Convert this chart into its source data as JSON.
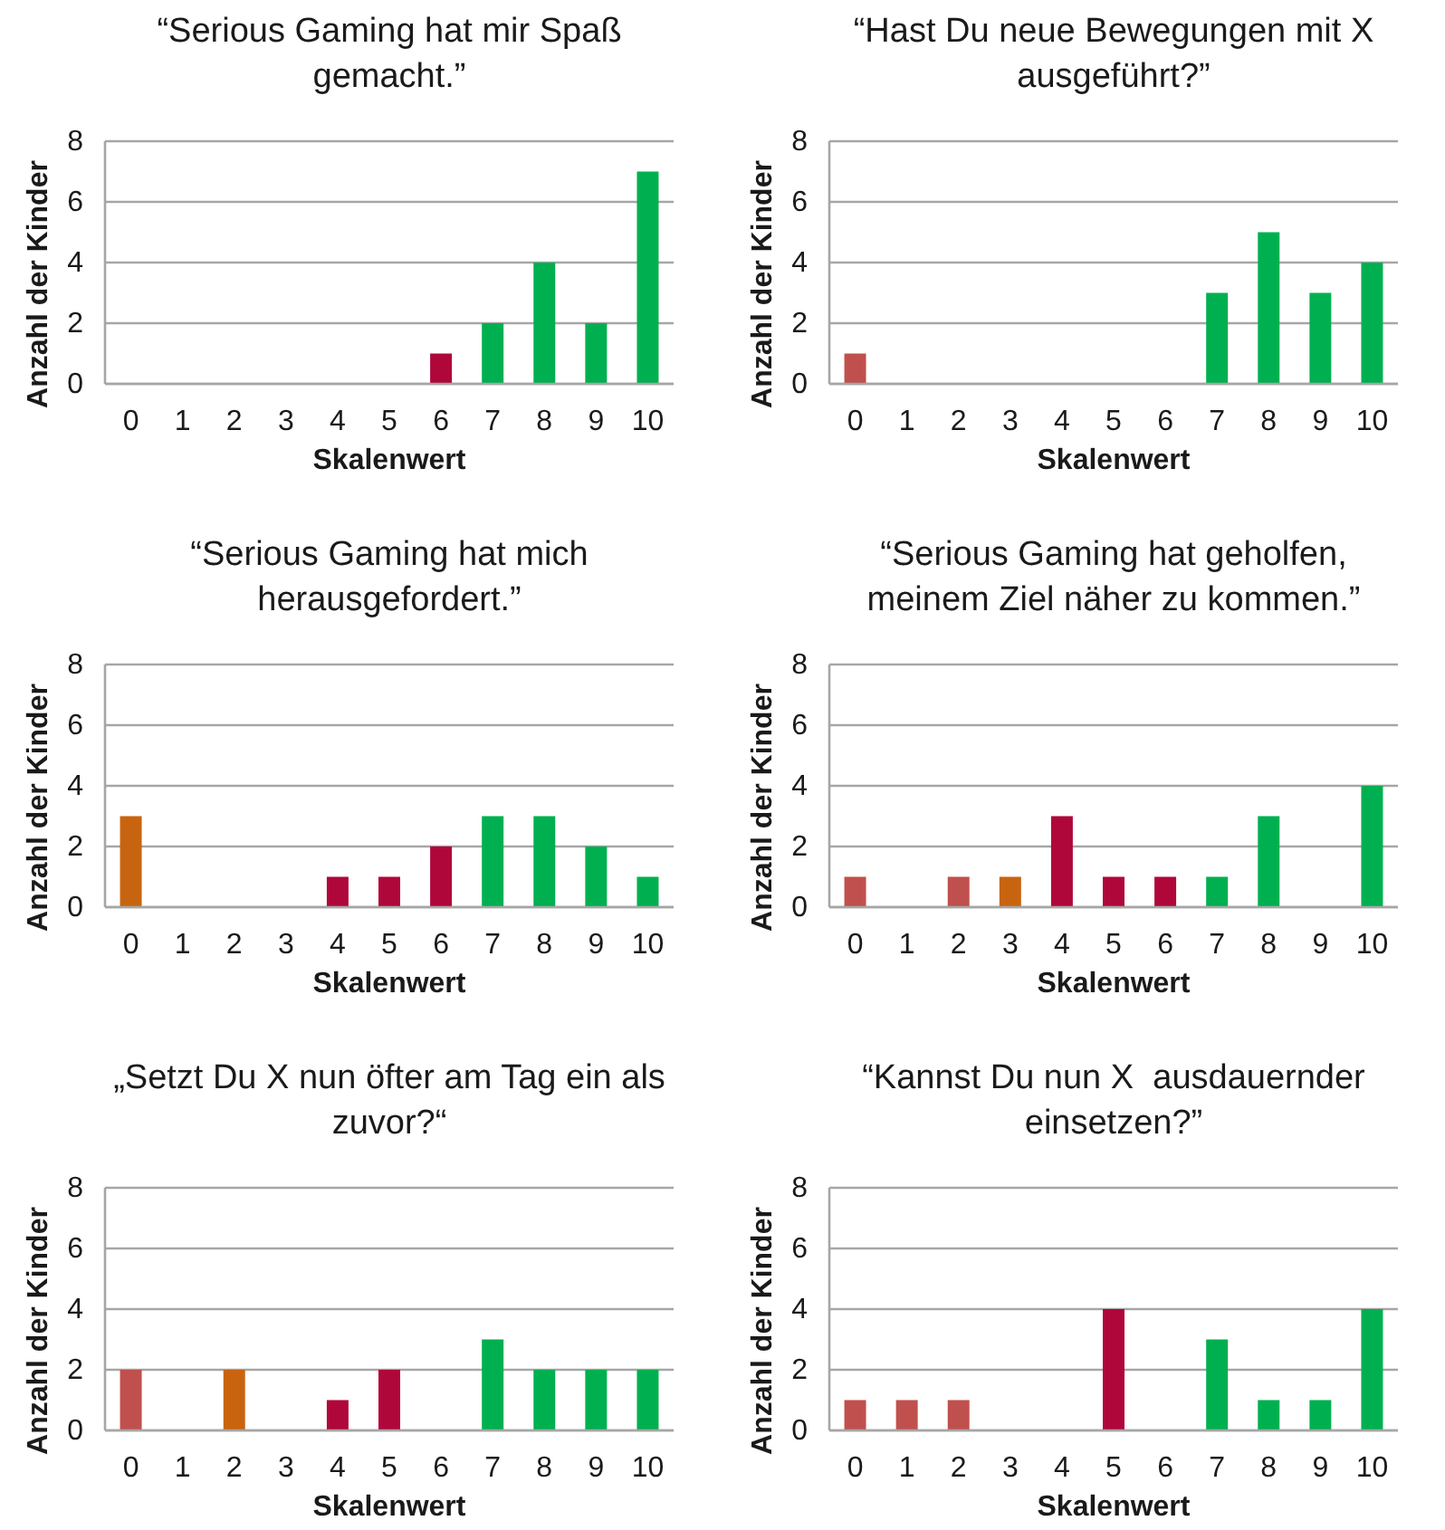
{
  "chart_data": [
    {
      "type": "bar",
      "title": "“Serious Gaming hat mir Spaß gemacht.”",
      "xlabel": "Skalenwert",
      "ylabel": "Anzahl der Kinder",
      "categories": [
        "0",
        "1",
        "2",
        "3",
        "4",
        "5",
        "6",
        "7",
        "8",
        "9",
        "10"
      ],
      "values": [
        0,
        0,
        0,
        0,
        0,
        0,
        1,
        2,
        4,
        2,
        7
      ],
      "colors": [
        "#c0504d",
        "#c0504d",
        "#c0504d",
        "#c8640f",
        "#b0073a",
        "#b0073a",
        "#b0073a",
        "#00b050",
        "#00b050",
        "#00b050",
        "#00b050"
      ],
      "ylim": [
        0,
        8
      ],
      "yticks": [
        0,
        2,
        4,
        6,
        8
      ],
      "grid": "y"
    },
    {
      "type": "bar",
      "title": "“Hast Du neue Bewegungen mit X ausgeführt?”",
      "xlabel": "Skalenwert",
      "ylabel": "Anzahl der Kinder",
      "categories": [
        "0",
        "1",
        "2",
        "3",
        "4",
        "5",
        "6",
        "7",
        "8",
        "9",
        "10"
      ],
      "values": [
        1,
        0,
        0,
        0,
        0,
        0,
        0,
        3,
        5,
        3,
        4
      ],
      "colors": [
        "#c0504d",
        "#c0504d",
        "#c0504d",
        "#c8640f",
        "#b0073a",
        "#b0073a",
        "#b0073a",
        "#00b050",
        "#00b050",
        "#00b050",
        "#00b050"
      ],
      "ylim": [
        0,
        8
      ],
      "yticks": [
        0,
        2,
        4,
        6,
        8
      ],
      "grid": "y"
    },
    {
      "type": "bar",
      "title": "“Serious Gaming hat mich herausgefordert.”",
      "xlabel": "Skalenwert",
      "ylabel": "Anzahl der Kinder",
      "categories": [
        "0",
        "1",
        "2",
        "3",
        "4",
        "5",
        "6",
        "7",
        "8",
        "9",
        "10"
      ],
      "values": [
        3,
        0,
        0,
        0,
        1,
        1,
        2,
        3,
        3,
        2,
        1
      ],
      "colors": [
        "#c8640f",
        "#c0504d",
        "#c0504d",
        "#c8640f",
        "#b0073a",
        "#b0073a",
        "#b0073a",
        "#00b050",
        "#00b050",
        "#00b050",
        "#00b050"
      ],
      "ylim": [
        0,
        8
      ],
      "yticks": [
        0,
        2,
        4,
        6,
        8
      ],
      "grid": "y"
    },
    {
      "type": "bar",
      "title": "“Serious Gaming hat geholfen, meinem Ziel näher zu kommen.”",
      "xlabel": "Skalenwert",
      "ylabel": "Anzahl der Kinder",
      "categories": [
        "0",
        "1",
        "2",
        "3",
        "4",
        "5",
        "6",
        "7",
        "8",
        "9",
        "10"
      ],
      "values": [
        1,
        0,
        1,
        1,
        3,
        1,
        1,
        1,
        3,
        0,
        4
      ],
      "colors": [
        "#c0504d",
        "#c0504d",
        "#c0504d",
        "#c8640f",
        "#b0073a",
        "#b0073a",
        "#b0073a",
        "#00b050",
        "#00b050",
        "#00b050",
        "#00b050"
      ],
      "ylim": [
        0,
        8
      ],
      "yticks": [
        0,
        2,
        4,
        6,
        8
      ],
      "grid": "y"
    },
    {
      "type": "bar",
      "title": "„Setzt Du X nun öfter am Tag ein als zuvor?“",
      "xlabel": "Skalenwert",
      "ylabel": "Anzahl der Kinder",
      "categories": [
        "0",
        "1",
        "2",
        "3",
        "4",
        "5",
        "6",
        "7",
        "8",
        "9",
        "10"
      ],
      "values": [
        2,
        0,
        2,
        0,
        1,
        2,
        0,
        3,
        2,
        2,
        2
      ],
      "colors": [
        "#c0504d",
        "#c0504d",
        "#c8640f",
        "#c8640f",
        "#b0073a",
        "#b0073a",
        "#b0073a",
        "#00b050",
        "#00b050",
        "#00b050",
        "#00b050"
      ],
      "ylim": [
        0,
        8
      ],
      "yticks": [
        0,
        2,
        4,
        6,
        8
      ],
      "grid": "y"
    },
    {
      "type": "bar",
      "title": "“Kannst Du nun X  ausdauernder einsetzen?”",
      "xlabel": "Skalenwert",
      "ylabel": "Anzahl der Kinder",
      "categories": [
        "0",
        "1",
        "2",
        "3",
        "4",
        "5",
        "6",
        "7",
        "8",
        "9",
        "10"
      ],
      "values": [
        1,
        1,
        1,
        0,
        0,
        4,
        0,
        3,
        1,
        1,
        4
      ],
      "colors": [
        "#c0504d",
        "#c0504d",
        "#c0504d",
        "#c8640f",
        "#b0073a",
        "#b0073a",
        "#b0073a",
        "#00b050",
        "#00b050",
        "#00b050",
        "#00b050"
      ],
      "ylim": [
        0,
        8
      ],
      "yticks": [
        0,
        2,
        4,
        6,
        8
      ],
      "grid": "y"
    }
  ]
}
